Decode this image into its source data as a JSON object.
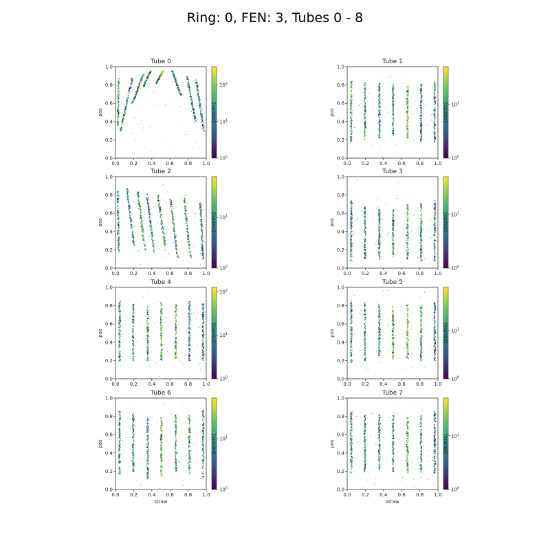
{
  "figure": {
    "title": "Ring: 0, FEN: 3, Tubes 0 - 8"
  },
  "colormap": {
    "name": "viridis",
    "stops": [
      "#440154",
      "#3b528b",
      "#21918c",
      "#5ec962",
      "#fde725"
    ]
  },
  "chart_data": [
    {
      "type": "heatmap",
      "title": "Tube 0",
      "xlabel": "",
      "ylabel": "pos",
      "cbar_label": "[counts]",
      "xlim": [
        0,
        1
      ],
      "ylim": [
        0,
        1
      ],
      "xticks": [
        "0.0",
        "0.2",
        "0.4",
        "0.6",
        "0.8",
        "1.0"
      ],
      "yticks": [
        "0.0",
        "0.2",
        "0.4",
        "0.6",
        "0.8",
        "1.0"
      ],
      "cbar_ticks": [
        "10^0",
        "10^1",
        "10^2"
      ],
      "cbar_log_max": 2.5,
      "pattern": "v-shape",
      "straws": [
        {
          "x0": 0.02,
          "x1": 0.03,
          "y0": 0.35,
          "y1": 0.88,
          "intensity": 0.6
        },
        {
          "x0": 0.05,
          "x1": 0.18,
          "y0": 0.3,
          "y1": 0.88,
          "intensity": 0.5
        },
        {
          "x0": 0.18,
          "x1": 0.3,
          "y0": 0.6,
          "y1": 0.92,
          "intensity": 0.6
        },
        {
          "x0": 0.3,
          "x1": 0.38,
          "y0": 0.78,
          "y1": 0.96,
          "intensity": 0.7
        },
        {
          "x0": 0.44,
          "x1": 0.52,
          "y0": 0.82,
          "y1": 0.96,
          "intensity": 0.8
        },
        {
          "x0": 0.62,
          "x1": 0.72,
          "y0": 0.96,
          "y1": 0.68,
          "intensity": 0.6
        },
        {
          "x0": 0.78,
          "x1": 0.88,
          "y0": 0.9,
          "y1": 0.4,
          "intensity": 0.5
        },
        {
          "x0": 0.88,
          "x1": 0.97,
          "y0": 0.88,
          "y1": 0.3,
          "intensity": 0.5
        }
      ]
    },
    {
      "type": "heatmap",
      "title": "Tube 1",
      "xlabel": "",
      "ylabel": "pos",
      "cbar_label": "[counts]",
      "xlim": [
        0,
        1
      ],
      "ylim": [
        0,
        1
      ],
      "xticks": [
        "0.0",
        "0.2",
        "0.4",
        "0.6",
        "0.8",
        "1.0"
      ],
      "yticks": [
        "0.0",
        "0.2",
        "0.4",
        "0.6",
        "0.8",
        "1.0"
      ],
      "cbar_ticks": [
        "10^0",
        "10^1"
      ],
      "cbar_log_max": 1.7,
      "pattern": "vertical",
      "straws": [
        {
          "x0": 0.04,
          "x1": 0.04,
          "y0": 0.18,
          "y1": 0.86,
          "intensity": 0.6
        },
        {
          "x0": 0.19,
          "x1": 0.19,
          "y0": 0.2,
          "y1": 0.84,
          "intensity": 0.6
        },
        {
          "x0": 0.35,
          "x1": 0.35,
          "y0": 0.22,
          "y1": 0.82,
          "intensity": 0.5
        },
        {
          "x0": 0.5,
          "x1": 0.5,
          "y0": 0.25,
          "y1": 0.82,
          "intensity": 0.6
        },
        {
          "x0": 0.66,
          "x1": 0.66,
          "y0": 0.22,
          "y1": 0.82,
          "intensity": 0.7
        },
        {
          "x0": 0.81,
          "x1": 0.81,
          "y0": 0.18,
          "y1": 0.82,
          "intensity": 0.4
        },
        {
          "x0": 0.96,
          "x1": 0.96,
          "y0": 0.18,
          "y1": 0.84,
          "intensity": 0.5
        }
      ]
    },
    {
      "type": "heatmap",
      "title": "Tube 2",
      "xlabel": "",
      "ylabel": "pos",
      "cbar_label": "[counts]",
      "xlim": [
        0,
        1
      ],
      "ylim": [
        0,
        1
      ],
      "xticks": [
        "0.0",
        "0.2",
        "0.4",
        "0.6",
        "0.8",
        "1.0"
      ],
      "yticks": [
        "0.0",
        "0.2",
        "0.4",
        "0.6",
        "0.8",
        "1.0"
      ],
      "cbar_ticks": [
        "10^0",
        "10^1"
      ],
      "cbar_log_max": 1.8,
      "pattern": "slanted",
      "straws": [
        {
          "x0": 0.02,
          "x1": 0.03,
          "y0": 0.85,
          "y1": 0.18,
          "intensity": 0.5
        },
        {
          "x0": 0.12,
          "x1": 0.2,
          "y0": 0.88,
          "y1": 0.25,
          "intensity": 0.5
        },
        {
          "x0": 0.24,
          "x1": 0.32,
          "y0": 0.84,
          "y1": 0.2,
          "intensity": 0.6
        },
        {
          "x0": 0.34,
          "x1": 0.42,
          "y0": 0.82,
          "y1": 0.18,
          "intensity": 0.5
        },
        {
          "x0": 0.46,
          "x1": 0.55,
          "y0": 0.8,
          "y1": 0.2,
          "intensity": 0.6
        },
        {
          "x0": 0.6,
          "x1": 0.68,
          "y0": 0.76,
          "y1": 0.12,
          "intensity": 0.6
        },
        {
          "x0": 0.75,
          "x1": 0.82,
          "y0": 0.78,
          "y1": 0.12,
          "intensity": 0.6
        },
        {
          "x0": 0.93,
          "x1": 0.96,
          "y0": 0.72,
          "y1": 0.1,
          "intensity": 0.4
        }
      ]
    },
    {
      "type": "heatmap",
      "title": "Tube 3",
      "xlabel": "",
      "ylabel": "pos",
      "cbar_label": "[counts]",
      "xlim": [
        0,
        1
      ],
      "ylim": [
        0,
        1
      ],
      "xticks": [
        "0.0",
        "0.2",
        "0.4",
        "0.6",
        "0.8",
        "1.0"
      ],
      "yticks": [
        "0.0",
        "0.2",
        "0.4",
        "0.6",
        "0.8",
        "1.0"
      ],
      "cbar_ticks": [
        "10^0",
        "10^1"
      ],
      "cbar_log_max": 1.7,
      "pattern": "vertical",
      "straws": [
        {
          "x0": 0.04,
          "x1": 0.04,
          "y0": 0.08,
          "y1": 0.75,
          "intensity": 0.4
        },
        {
          "x0": 0.19,
          "x1": 0.19,
          "y0": 0.1,
          "y1": 0.68,
          "intensity": 0.5
        },
        {
          "x0": 0.35,
          "x1": 0.35,
          "y0": 0.1,
          "y1": 0.65,
          "intensity": 0.5
        },
        {
          "x0": 0.5,
          "x1": 0.5,
          "y0": 0.12,
          "y1": 0.65,
          "intensity": 0.6
        },
        {
          "x0": 0.66,
          "x1": 0.66,
          "y0": 0.08,
          "y1": 0.7,
          "intensity": 0.7
        },
        {
          "x0": 0.81,
          "x1": 0.81,
          "y0": 0.08,
          "y1": 0.72,
          "intensity": 0.6
        },
        {
          "x0": 0.96,
          "x1": 0.96,
          "y0": 0.08,
          "y1": 0.75,
          "intensity": 0.5
        }
      ]
    },
    {
      "type": "heatmap",
      "title": "Tube 4",
      "xlabel": "",
      "ylabel": "pos",
      "cbar_label": "[counts]",
      "xlim": [
        0,
        1
      ],
      "ylim": [
        0,
        1
      ],
      "xticks": [
        "0.0",
        "0.2",
        "0.4",
        "0.6",
        "0.8",
        "1.0"
      ],
      "yticks": [
        "0.0",
        "0.2",
        "0.4",
        "0.6",
        "0.8",
        "1.0"
      ],
      "cbar_ticks": [
        "10^0",
        "10^1",
        "10^2"
      ],
      "cbar_log_max": 2.1,
      "pattern": "vertical",
      "straws": [
        {
          "x0": 0.04,
          "x1": 0.04,
          "y0": 0.18,
          "y1": 0.86,
          "intensity": 0.5
        },
        {
          "x0": 0.19,
          "x1": 0.19,
          "y0": 0.2,
          "y1": 0.82,
          "intensity": 0.6
        },
        {
          "x0": 0.35,
          "x1": 0.35,
          "y0": 0.2,
          "y1": 0.8,
          "intensity": 0.6
        },
        {
          "x0": 0.5,
          "x1": 0.5,
          "y0": 0.2,
          "y1": 0.85,
          "intensity": 0.7
        },
        {
          "x0": 0.66,
          "x1": 0.66,
          "y0": 0.22,
          "y1": 0.82,
          "intensity": 0.7
        },
        {
          "x0": 0.81,
          "x1": 0.81,
          "y0": 0.2,
          "y1": 0.85,
          "intensity": 0.5
        },
        {
          "x0": 0.96,
          "x1": 0.96,
          "y0": 0.2,
          "y1": 0.84,
          "intensity": 0.4
        }
      ]
    },
    {
      "type": "heatmap",
      "title": "Tube 5",
      "xlabel": "",
      "ylabel": "pos",
      "cbar_label": "[counts]",
      "xlim": [
        0,
        1
      ],
      "ylim": [
        0,
        1
      ],
      "xticks": [
        "0.0",
        "0.2",
        "0.4",
        "0.6",
        "0.8",
        "1.0"
      ],
      "yticks": [
        "0.0",
        "0.2",
        "0.4",
        "0.6",
        "0.8",
        "1.0"
      ],
      "cbar_ticks": [
        "10^0",
        "10^1"
      ],
      "cbar_log_max": 1.9,
      "pattern": "vertical",
      "straws": [
        {
          "x0": 0.04,
          "x1": 0.04,
          "y0": 0.18,
          "y1": 0.86,
          "intensity": 0.5
        },
        {
          "x0": 0.19,
          "x1": 0.19,
          "y0": 0.2,
          "y1": 0.84,
          "intensity": 0.6
        },
        {
          "x0": 0.35,
          "x1": 0.35,
          "y0": 0.25,
          "y1": 0.82,
          "intensity": 0.6
        },
        {
          "x0": 0.5,
          "x1": 0.5,
          "y0": 0.22,
          "y1": 0.8,
          "intensity": 0.7
        },
        {
          "x0": 0.66,
          "x1": 0.66,
          "y0": 0.22,
          "y1": 0.84,
          "intensity": 0.8
        },
        {
          "x0": 0.81,
          "x1": 0.81,
          "y0": 0.2,
          "y1": 0.82,
          "intensity": 0.6
        },
        {
          "x0": 0.96,
          "x1": 0.96,
          "y0": 0.2,
          "y1": 0.84,
          "intensity": 0.4
        }
      ]
    },
    {
      "type": "heatmap",
      "title": "Tube 6",
      "xlabel": "straw",
      "ylabel": "pos",
      "cbar_label": "[counts]",
      "xlim": [
        0,
        1
      ],
      "ylim": [
        0,
        1
      ],
      "xticks": [
        "0.0",
        "0.2",
        "0.4",
        "0.6",
        "0.8",
        "1.0"
      ],
      "yticks": [
        "0.0",
        "0.2",
        "0.4",
        "0.6",
        "0.8",
        "1.0"
      ],
      "cbar_ticks": [
        "10^0",
        "10^1"
      ],
      "cbar_log_max": 1.8,
      "pattern": "vertical",
      "straws": [
        {
          "x0": 0.04,
          "x1": 0.04,
          "y0": 0.12,
          "y1": 0.86,
          "intensity": 0.5
        },
        {
          "x0": 0.19,
          "x1": 0.19,
          "y0": 0.2,
          "y1": 0.84,
          "intensity": 0.5
        },
        {
          "x0": 0.35,
          "x1": 0.35,
          "y0": 0.12,
          "y1": 0.8,
          "intensity": 0.5
        },
        {
          "x0": 0.5,
          "x1": 0.5,
          "y0": 0.15,
          "y1": 0.8,
          "intensity": 0.7
        },
        {
          "x0": 0.66,
          "x1": 0.66,
          "y0": 0.2,
          "y1": 0.82,
          "intensity": 0.6
        },
        {
          "x0": 0.81,
          "x1": 0.81,
          "y0": 0.18,
          "y1": 0.82,
          "intensity": 0.6
        },
        {
          "x0": 0.96,
          "x1": 0.96,
          "y0": 0.12,
          "y1": 0.88,
          "intensity": 0.5
        }
      ]
    },
    {
      "type": "heatmap",
      "title": "Tube 7",
      "xlabel": "straw",
      "ylabel": "pos",
      "cbar_label": "[counts]",
      "xlim": [
        0,
        1
      ],
      "ylim": [
        0,
        1
      ],
      "xticks": [
        "0.0",
        "0.2",
        "0.4",
        "0.6",
        "0.8",
        "1.0"
      ],
      "yticks": [
        "0.0",
        "0.2",
        "0.4",
        "0.6",
        "0.8",
        "1.0"
      ],
      "cbar_ticks": [
        "10^0",
        "10^1"
      ],
      "cbar_log_max": 1.7,
      "pattern": "vertical",
      "straws": [
        {
          "x0": 0.04,
          "x1": 0.04,
          "y0": 0.18,
          "y1": 0.86,
          "intensity": 0.5
        },
        {
          "x0": 0.19,
          "x1": 0.19,
          "y0": 0.2,
          "y1": 0.82,
          "intensity": 0.5
        },
        {
          "x0": 0.35,
          "x1": 0.35,
          "y0": 0.22,
          "y1": 0.82,
          "intensity": 0.5
        },
        {
          "x0": 0.5,
          "x1": 0.5,
          "y0": 0.2,
          "y1": 0.82,
          "intensity": 0.6
        },
        {
          "x0": 0.66,
          "x1": 0.66,
          "y0": 0.18,
          "y1": 0.8,
          "intensity": 0.7
        },
        {
          "x0": 0.81,
          "x1": 0.81,
          "y0": 0.18,
          "y1": 0.82,
          "intensity": 0.6
        },
        {
          "x0": 0.96,
          "x1": 0.96,
          "y0": 0.18,
          "y1": 0.86,
          "intensity": 0.4
        }
      ]
    }
  ]
}
